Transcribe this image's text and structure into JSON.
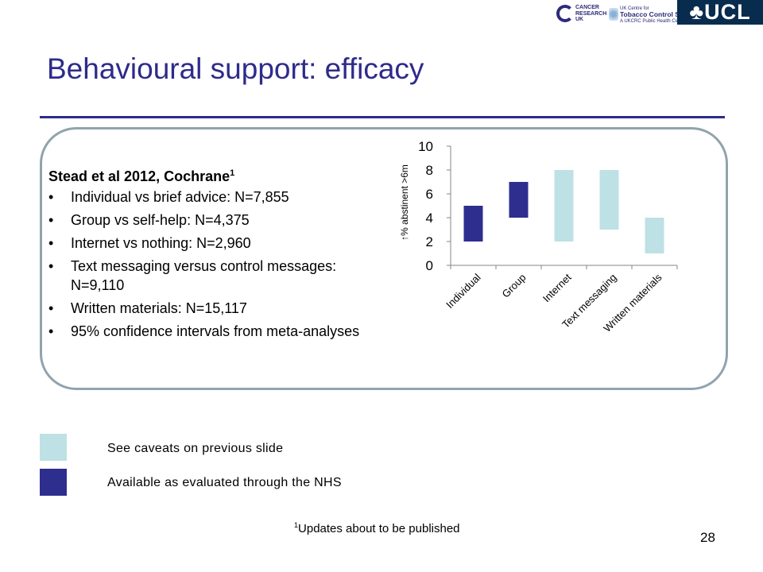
{
  "logos": {
    "cancer_research": [
      "CANCER",
      "RESEARCH",
      "UK"
    ],
    "tobacco_centre": [
      "UK Centre for",
      "Tobacco Control Studies",
      "A UKCRC Public Health Centre of Excellence"
    ],
    "ucl": "♣UCL"
  },
  "slide": {
    "title": "Behavioural support: efficacy",
    "page_number": "28"
  },
  "study": {
    "heading": "Stead et al 2012, Cochrane",
    "heading_sup": "1",
    "bullets": [
      "Individual vs brief advice: N=7,855",
      "Group vs self-help: N=4,375",
      "Internet vs nothing: N=2,960",
      "Text messaging versus control messages: N=9,110",
      "Written materials: N=15,117",
      "95% confidence intervals from meta-analyses"
    ]
  },
  "legend": [
    {
      "label": "See caveats on previous slide",
      "color": "#bde1e4"
    },
    {
      "label": "Available as evaluated through the NHS",
      "color": "#2e2e8f"
    }
  ],
  "footnote": {
    "sup": "1",
    "text": "Updates about to be published"
  },
  "chart_data": {
    "type": "bar",
    "subtype": "floating-range",
    "categories": [
      "Individual",
      "Group",
      "Internet",
      "Text messaging",
      "Written materials"
    ],
    "ranges": [
      [
        2,
        5
      ],
      [
        4,
        7
      ],
      [
        2,
        8
      ],
      [
        3,
        8
      ],
      [
        1,
        4
      ]
    ],
    "colors": [
      "#2e2e8f",
      "#2e2e8f",
      "#bde1e4",
      "#bde1e4",
      "#bde1e4"
    ],
    "ylabel": "↑% abstinent >6m",
    "ylim": [
      0,
      10
    ],
    "yticks": [
      0,
      2,
      4,
      6,
      8,
      10
    ],
    "grid": false
  }
}
